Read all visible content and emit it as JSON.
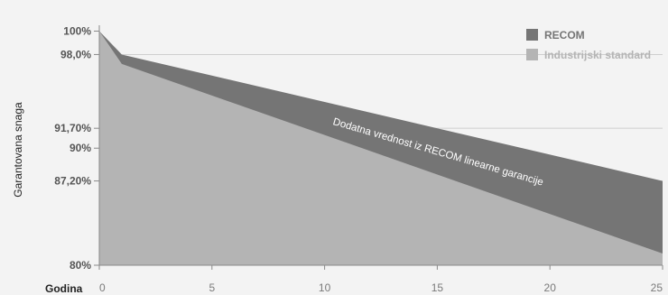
{
  "chart_data": {
    "type": "area",
    "title": "",
    "xlabel": "Godina",
    "ylabel": "Garantovana snaga",
    "xlim": [
      0,
      25
    ],
    "ylim": [
      80,
      100.5
    ],
    "x_ticks": [
      0,
      5,
      10,
      15,
      20,
      25
    ],
    "y_ticks": [
      {
        "value": 100,
        "label": "100%"
      },
      {
        "value": 98.0,
        "label": "98,0%"
      },
      {
        "value": 91.7,
        "label": "91,70%"
      },
      {
        "value": 90,
        "label": "90%"
      },
      {
        "value": 87.2,
        "label": "87,20%"
      },
      {
        "value": 80,
        "label": "80%"
      }
    ],
    "grid_lines_at": [
      98.0,
      91.7,
      87.2
    ],
    "series": [
      {
        "name": "RECOM",
        "color": "#757575",
        "x": [
          0,
          1,
          25
        ],
        "values": [
          100,
          98.0,
          87.2
        ]
      },
      {
        "name": "Industrijski standard",
        "color": "#b4b4b4",
        "x": [
          0,
          1,
          25
        ],
        "values": [
          100,
          97.2,
          81.0
        ]
      }
    ],
    "annotation": "Dodatna vrednost iz RECOM linearne garancije",
    "legend_position": "top-right"
  }
}
